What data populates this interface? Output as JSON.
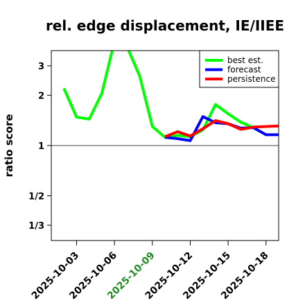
{
  "chart_data": {
    "type": "line",
    "title": "rel. edge displacement, IE/IIEE",
    "ylabel": "ratio score",
    "xlabel": "",
    "scale": "log",
    "ylim": [
      0.27,
      3.7
    ],
    "y_ticks": [
      {
        "value": 0.3333,
        "label": "1/3"
      },
      {
        "value": 0.5,
        "label": "1/2"
      },
      {
        "value": 1,
        "label": "1"
      },
      {
        "value": 2,
        "label": "2"
      },
      {
        "value": 3,
        "label": "3"
      }
    ],
    "reference_line": 1,
    "x_range": [
      "2025-10-01",
      "2025-10-19"
    ],
    "x_ticks": [
      {
        "value": "2025-10-03",
        "label": "2025-10-03",
        "color": "#000000"
      },
      {
        "value": "2025-10-06",
        "label": "2025-10-06",
        "color": "#000000"
      },
      {
        "value": "2025-10-09",
        "label": "2025-10-09",
        "color": "#228B22"
      },
      {
        "value": "2025-10-12",
        "label": "2025-10-12",
        "color": "#000000"
      },
      {
        "value": "2025-10-15",
        "label": "2025-10-15",
        "color": "#000000"
      },
      {
        "value": "2025-10-18",
        "label": "2025-10-18",
        "color": "#000000"
      }
    ],
    "legend_position": "top-right",
    "series": [
      {
        "name": "best est.",
        "color": "#00ff00",
        "points": [
          {
            "x": "2025-10-02",
            "y": 2.2
          },
          {
            "x": "2025-10-03",
            "y": 1.48
          },
          {
            "x": "2025-10-04",
            "y": 1.44
          },
          {
            "x": "2025-10-05",
            "y": 2.05
          },
          {
            "x": "2025-10-06",
            "y": 4.2
          },
          {
            "x": "2025-10-07",
            "y": 3.9
          },
          {
            "x": "2025-10-08",
            "y": 2.6
          },
          {
            "x": "2025-10-09",
            "y": 1.3
          },
          {
            "x": "2025-10-10",
            "y": 1.12
          },
          {
            "x": "2025-10-11",
            "y": 1.15
          },
          {
            "x": "2025-10-12",
            "y": 1.13
          },
          {
            "x": "2025-10-13",
            "y": 1.24
          },
          {
            "x": "2025-10-14",
            "y": 1.76
          },
          {
            "x": "2025-10-15",
            "y": 1.55
          },
          {
            "x": "2025-10-16",
            "y": 1.38
          },
          {
            "x": "2025-10-17",
            "y": 1.28
          },
          {
            "x": "2025-10-18",
            "y": 1.16
          }
        ]
      },
      {
        "name": "forecast",
        "color": "#0000ff",
        "points": [
          {
            "x": "2025-10-10",
            "y": 1.12
          },
          {
            "x": "2025-10-11",
            "y": 1.1
          },
          {
            "x": "2025-10-12",
            "y": 1.07
          },
          {
            "x": "2025-10-13",
            "y": 1.49
          },
          {
            "x": "2025-10-14",
            "y": 1.37
          },
          {
            "x": "2025-10-15",
            "y": 1.35
          },
          {
            "x": "2025-10-16",
            "y": 1.27
          },
          {
            "x": "2025-10-17",
            "y": 1.28
          },
          {
            "x": "2025-10-18",
            "y": 1.16
          },
          {
            "x": "2025-10-19",
            "y": 1.16
          }
        ]
      },
      {
        "name": "persistence",
        "color": "#ff0000",
        "points": [
          {
            "x": "2025-10-10",
            "y": 1.13
          },
          {
            "x": "2025-10-11",
            "y": 1.21
          },
          {
            "x": "2025-10-12",
            "y": 1.14
          },
          {
            "x": "2025-10-13",
            "y": 1.26
          },
          {
            "x": "2025-10-14",
            "y": 1.41
          },
          {
            "x": "2025-10-15",
            "y": 1.35
          },
          {
            "x": "2025-10-16",
            "y": 1.25
          },
          {
            "x": "2025-10-17",
            "y": 1.29
          },
          {
            "x": "2025-10-18",
            "y": 1.3
          },
          {
            "x": "2025-10-19",
            "y": 1.31
          }
        ]
      }
    ]
  }
}
